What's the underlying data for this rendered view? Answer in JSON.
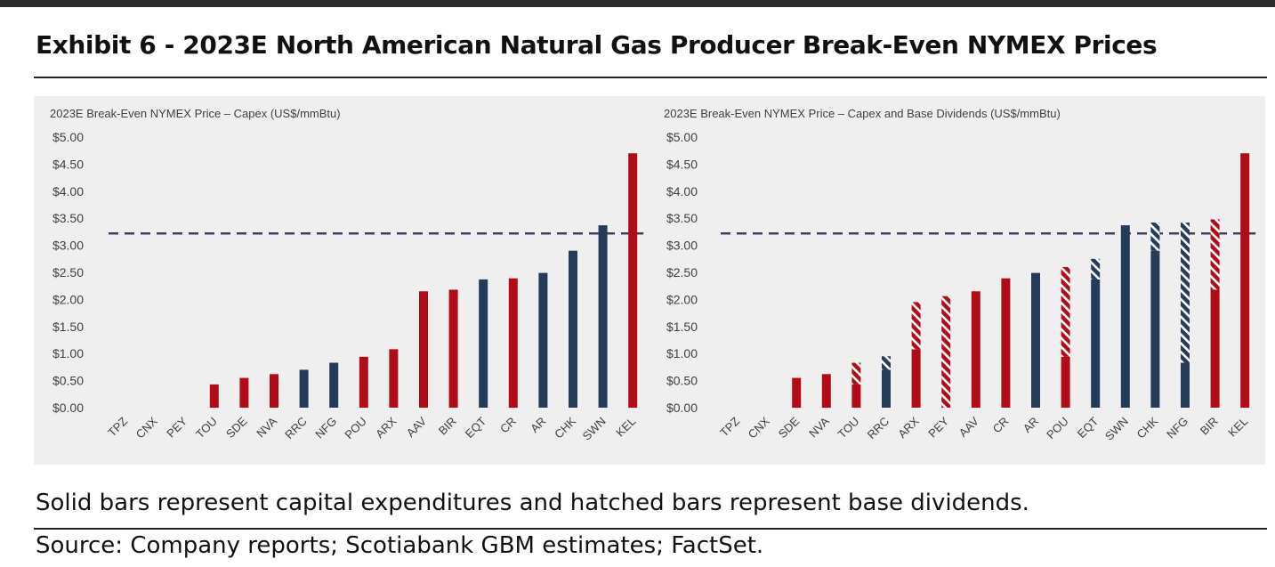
{
  "title": "Exhibit 6 - 2023E North American Natural Gas Producer Break-Even NYMEX Prices",
  "note": "Solid bars represent capital expenditures and hatched bars represent base dividends.",
  "source": "Source: Company reports; Scotiabank GBM estimates; FactSet.",
  "colors": {
    "red": "#b00b19",
    "blue": "#243b5a",
    "dashed_line": "#4b3a63",
    "panel": "#efefef",
    "axis_text": "#404040"
  },
  "chart_data": [
    {
      "type": "bar",
      "title": "2023E Break-Even NYMEX Price – Capex (US$/mmBtu)",
      "ylim": [
        0,
        5
      ],
      "ytick_labels": [
        "$0.00",
        "$0.50",
        "$1.00",
        "$1.50",
        "$2.00",
        "$2.50",
        "$3.00",
        "$3.50",
        "$4.00",
        "$4.50",
        "$5.00"
      ],
      "reference_line": 3.22,
      "categories": [
        "TPZ",
        "CNX",
        "PEY",
        "TOU",
        "SDE",
        "NVA",
        "RRC",
        "NFG",
        "POU",
        "ARX",
        "AAV",
        "BIR",
        "EQT",
        "CR",
        "AR",
        "CHK",
        "SWN",
        "KEL"
      ],
      "series": [
        {
          "name": "Capex",
          "values": [
            0,
            0,
            0,
            0.43,
            0.55,
            0.62,
            0.7,
            0.83,
            0.94,
            1.08,
            2.15,
            2.18,
            2.37,
            2.39,
            2.49,
            2.9,
            3.37,
            4.7
          ]
        }
      ],
      "bar_colors": [
        "red",
        "red",
        "red",
        "red",
        "red",
        "red",
        "blue",
        "blue",
        "red",
        "red",
        "red",
        "red",
        "blue",
        "red",
        "blue",
        "blue",
        "blue",
        "red"
      ]
    },
    {
      "type": "bar",
      "title": "2023E Break-Even NYMEX Price – Capex and Base Dividends (US$/mmBtu)",
      "ylim": [
        0,
        5
      ],
      "ytick_labels": [
        "$0.00",
        "$0.50",
        "$1.00",
        "$1.50",
        "$2.00",
        "$2.50",
        "$3.00",
        "$3.50",
        "$4.00",
        "$4.50",
        "$5.00"
      ],
      "reference_line": 3.22,
      "categories": [
        "TPZ",
        "CNX",
        "SDE",
        "NVA",
        "TOU",
        "RRC",
        "ARX",
        "PEY",
        "AAV",
        "CR",
        "AR",
        "POU",
        "EQT",
        "SWN",
        "CHK",
        "NFG",
        "BIR",
        "KEL"
      ],
      "series": [
        {
          "name": "Capex",
          "values": [
            0,
            0,
            0.55,
            0.62,
            0.43,
            0.7,
            1.08,
            0,
            2.15,
            2.39,
            2.49,
            0.94,
            2.37,
            3.37,
            2.9,
            0.83,
            2.18,
            4.7
          ]
        },
        {
          "name": "Base Dividends",
          "values": [
            0,
            0,
            0,
            0,
            0.4,
            0.25,
            0.87,
            2.06,
            0,
            0,
            0,
            1.66,
            0.38,
            0,
            0.52,
            2.59,
            1.3,
            0
          ]
        }
      ],
      "bar_colors": [
        "red",
        "red",
        "red",
        "red",
        "red",
        "blue",
        "red",
        "red",
        "red",
        "red",
        "blue",
        "red",
        "blue",
        "blue",
        "blue",
        "blue",
        "red",
        "red"
      ]
    }
  ]
}
